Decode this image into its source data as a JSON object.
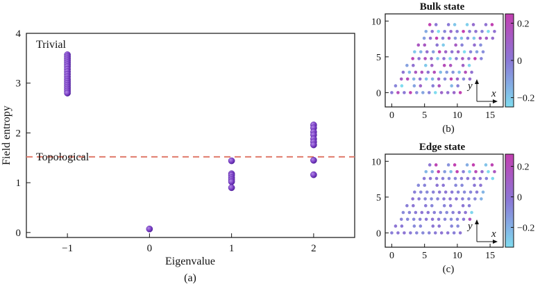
{
  "chart_data": [
    {
      "type": "scatter",
      "xlabel": "Eigenvalue",
      "ylabel": "Field entropy",
      "caption": "(a)",
      "xlim": [
        -1.5,
        2.5
      ],
      "ylim": [
        -0.1,
        4.0
      ],
      "xticks": [
        -1,
        0,
        1,
        2
      ],
      "xtick_labels": [
        "−1",
        "0",
        "1",
        "2"
      ],
      "yticks": [
        0,
        1,
        2,
        3,
        4
      ],
      "threshold": 1.52,
      "annotations": [
        {
          "text": "Trivial"
        },
        {
          "text": "Topological"
        }
      ],
      "grid": false,
      "colors": {
        "points": "#7b3fc6",
        "threshold": "#e07a6a"
      },
      "points": [
        [
          -1,
          3.57
        ],
        [
          -1,
          3.53
        ],
        [
          -1,
          3.49
        ],
        [
          -1,
          3.45
        ],
        [
          -1,
          3.41
        ],
        [
          -1,
          3.37
        ],
        [
          -1,
          3.33
        ],
        [
          -1,
          3.28
        ],
        [
          -1,
          3.23
        ],
        [
          -1,
          3.18
        ],
        [
          -1,
          3.13
        ],
        [
          -1,
          3.08
        ],
        [
          -1,
          3.04
        ],
        [
          -1,
          3.0
        ],
        [
          -1,
          2.96
        ],
        [
          -1,
          2.92
        ],
        [
          -1,
          2.88
        ],
        [
          -1,
          2.84
        ],
        [
          -1,
          2.8
        ],
        [
          0,
          0.07
        ],
        [
          1,
          1.44
        ],
        [
          1,
          1.18
        ],
        [
          1,
          1.15
        ],
        [
          1,
          1.1
        ],
        [
          1,
          1.06
        ],
        [
          1,
          1.02
        ],
        [
          1,
          0.9
        ],
        [
          2,
          2.16
        ],
        [
          2,
          2.1
        ],
        [
          2,
          2.02
        ],
        [
          2,
          1.96
        ],
        [
          2,
          1.88
        ],
        [
          2,
          1.82
        ],
        [
          2,
          1.76
        ],
        [
          2,
          1.45
        ],
        [
          2,
          1.16
        ]
      ]
    },
    {
      "type": "scatter",
      "title": "Bulk state",
      "caption": "(b)",
      "xlim": [
        -1,
        17
      ],
      "ylim": [
        -2,
        11
      ],
      "xticks": [
        0,
        5,
        10,
        15
      ],
      "yticks": [
        0,
        5,
        10
      ],
      "axis_arrows": {
        "x": "x",
        "y": "y"
      },
      "colorbar": {
        "range": [
          -0.25,
          0.25
        ],
        "ticks": [
          0.2,
          0,
          -0.2
        ],
        "tick_labels": [
          "0.2",
          "0",
          "−0.2"
        ]
      },
      "grid": false
    },
    {
      "type": "scatter",
      "title": "Edge state",
      "caption": "(c)",
      "xlim": [
        -1,
        17
      ],
      "ylim": [
        -2,
        11
      ],
      "xticks": [
        0,
        5,
        10,
        15
      ],
      "yticks": [
        0,
        5,
        10
      ],
      "axis_arrows": {
        "x": "x",
        "y": "y"
      },
      "colorbar": {
        "range": [
          -0.33,
          0.28
        ],
        "ticks": [
          0.2,
          0,
          -0.2
        ],
        "tick_labels": [
          "0.2",
          "0",
          "−0.2"
        ]
      },
      "grid": false
    }
  ]
}
